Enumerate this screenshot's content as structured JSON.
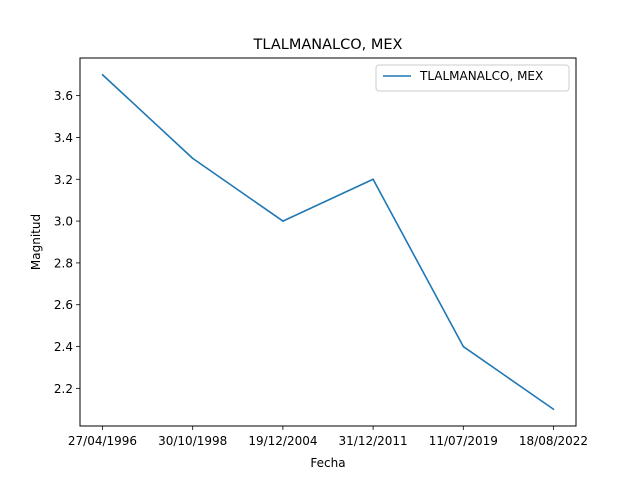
{
  "chart_data": {
    "type": "line",
    "title": "TLALMANALCO, MEX",
    "xlabel": "Fecha",
    "ylabel": "Magnitud",
    "categories": [
      "27/04/1996",
      "30/10/1998",
      "19/12/2004",
      "31/12/2011",
      "11/07/2019",
      "18/08/2022"
    ],
    "series": [
      {
        "name": "TLALMANALCO, MEX",
        "values": [
          3.7,
          3.3,
          3.0,
          3.2,
          2.4,
          2.1
        ],
        "color": "#1f77b4"
      }
    ],
    "ylim": [
      2.02,
      3.78
    ],
    "yticks": [
      2.2,
      2.4,
      2.6,
      2.8,
      3.0,
      3.2,
      3.4,
      3.6
    ],
    "ytick_labels": [
      "2.2",
      "2.4",
      "2.6",
      "2.8",
      "3.0",
      "3.2",
      "3.4",
      "3.6"
    ],
    "grid": false,
    "legend_position": "top-right"
  }
}
